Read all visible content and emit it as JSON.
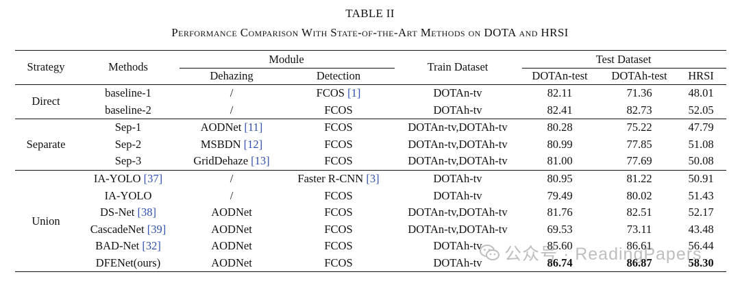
{
  "table": {
    "label": "TABLE II",
    "caption": "Performance Comparison With State-of-the-Art Methods on DOTA and HRSI"
  },
  "header": {
    "strategy": "Strategy",
    "methods": "Methods",
    "module": "Module",
    "dehazing": "Dehazing",
    "detection": "Detection",
    "train_dataset": "Train Dataset",
    "test_dataset": "Test Dataset",
    "dotan_test": "DOTAn-test",
    "dotah_test": "DOTAh-test",
    "hrsi": "HRSI"
  },
  "groups": [
    {
      "strategy": "Direct",
      "rows": [
        {
          "method": "baseline-1",
          "method_cite": "",
          "dehazing": "/",
          "dehazing_cite": "",
          "detection": "FCOS",
          "detection_cite": "[1]",
          "train": "DOTAn-tv",
          "dotan": "82.11",
          "dotah": "71.36",
          "hrsi": "48.01",
          "bold": false
        },
        {
          "method": "baseline-2",
          "method_cite": "",
          "dehazing": "/",
          "dehazing_cite": "",
          "detection": "FCOS",
          "detection_cite": "",
          "train": "DOTAh-tv",
          "dotan": "82.41",
          "dotah": "82.73",
          "hrsi": "52.05",
          "bold": false
        }
      ]
    },
    {
      "strategy": "Separate",
      "rows": [
        {
          "method": "Sep-1",
          "method_cite": "",
          "dehazing": "AODNet",
          "dehazing_cite": "[11]",
          "detection": "FCOS",
          "detection_cite": "",
          "train": "DOTAn-tv,DOTAh-tv",
          "dotan": "80.28",
          "dotah": "75.22",
          "hrsi": "47.79",
          "bold": false
        },
        {
          "method": "Sep-2",
          "method_cite": "",
          "dehazing": "MSBDN",
          "dehazing_cite": "[12]",
          "detection": "FCOS",
          "detection_cite": "",
          "train": "DOTAn-tv,DOTAh-tv",
          "dotan": "80.99",
          "dotah": "77.85",
          "hrsi": "51.08",
          "bold": false
        },
        {
          "method": "Sep-3",
          "method_cite": "",
          "dehazing": "GridDehaze",
          "dehazing_cite": "[13]",
          "detection": "FCOS",
          "detection_cite": "",
          "train": "DOTAn-tv,DOTAh-tv",
          "dotan": "81.00",
          "dotah": "77.69",
          "hrsi": "50.08",
          "bold": false
        }
      ]
    },
    {
      "strategy": "Union",
      "rows": [
        {
          "method": "IA-YOLO",
          "method_cite": "[37]",
          "dehazing": "/",
          "dehazing_cite": "",
          "detection": "Faster R-CNN",
          "detection_cite": "[3]",
          "train": "DOTAh-tv",
          "dotan": "80.95",
          "dotah": "81.22",
          "hrsi": "50.91",
          "bold": false
        },
        {
          "method": "IA-YOLO",
          "method_cite": "",
          "dehazing": "/",
          "dehazing_cite": "",
          "detection": "FCOS",
          "detection_cite": "",
          "train": "DOTAh-tv",
          "dotan": "79.49",
          "dotah": "80.02",
          "hrsi": "51.43",
          "bold": false
        },
        {
          "method": "DS-Net",
          "method_cite": "[38]",
          "dehazing": "AODNet",
          "dehazing_cite": "",
          "detection": "FCOS",
          "detection_cite": "",
          "train": "DOTAn-tv,DOTAh-tv",
          "dotan": "81.76",
          "dotah": "82.51",
          "hrsi": "52.17",
          "bold": false
        },
        {
          "method": "CascadeNet",
          "method_cite": "[39]",
          "dehazing": "AODNet",
          "dehazing_cite": "",
          "detection": "FCOS",
          "detection_cite": "",
          "train": "DOTAn-tv,DOTAh-tv",
          "dotan": "69.53",
          "dotah": "73.11",
          "hrsi": "43.48",
          "bold": false
        },
        {
          "method": "BAD-Net",
          "method_cite": "[32]",
          "dehazing": "AODNet",
          "dehazing_cite": "",
          "detection": "FCOS",
          "detection_cite": "",
          "train": "DOTAh-tv",
          "dotan": "85.60",
          "dotah": "86.61",
          "hrsi": "56.44",
          "bold": false
        },
        {
          "method": "DFENet(ours)",
          "method_cite": "",
          "dehazing": "AODNet",
          "dehazing_cite": "",
          "detection": "FCOS",
          "detection_cite": "",
          "train": "DOTAh-tv",
          "dotan": "86.74",
          "dotah": "86.87",
          "hrsi": "58.30",
          "bold": true
        }
      ]
    }
  ],
  "watermark": {
    "text": "公众号 · ReadingPapers",
    "icon": "wechat-icon"
  }
}
